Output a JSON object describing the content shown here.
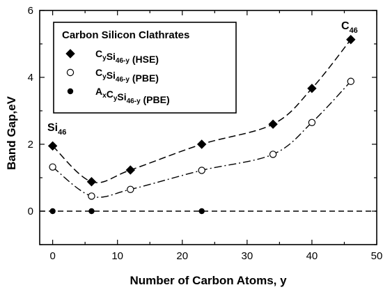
{
  "chart_data": {
    "type": "line",
    "title": "",
    "xlabel": "Number of Carbon Atoms, y",
    "ylabel": "Band Gap,eV",
    "xlim": [
      -2,
      50
    ],
    "ylim": [
      -1,
      6
    ],
    "xticks": [
      0,
      10,
      20,
      30,
      40,
      50
    ],
    "yticks": [
      0,
      2,
      4,
      6
    ],
    "grid": false,
    "legend": {
      "title": "Carbon Silicon Clathrates",
      "placement": "top-left",
      "entries": [
        {
          "base": "C",
          "sub1": "y",
          "mid": "Si",
          "sub2": "46-y",
          "suffix": " (HSE)"
        },
        {
          "base": "C",
          "sub1": "y",
          "mid": "Si",
          "sub2": "46-y",
          "suffix": " (PBE)"
        },
        {
          "pre": "A",
          "presub": "x",
          "base": "C",
          "sub1": "y",
          "mid": "Si",
          "sub2": "46-y",
          "suffix": " (PBE)"
        }
      ]
    },
    "annotations": [
      {
        "base": "Si",
        "sub": "46"
      },
      {
        "base": "C",
        "sub": "46"
      }
    ],
    "series": [
      {
        "name": "CySi46-y (HSE)",
        "marker": "diamond-filled",
        "line": "dashed",
        "x": [
          0,
          6,
          12,
          23,
          34,
          40,
          46
        ],
        "y": [
          1.95,
          0.88,
          1.23,
          2.0,
          2.6,
          3.67,
          5.13
        ]
      },
      {
        "name": "CySi46-y (PBE)",
        "marker": "circle-open",
        "line": "dash-dot",
        "x": [
          0,
          6,
          12,
          23,
          34,
          40,
          46
        ],
        "y": [
          1.32,
          0.45,
          0.65,
          1.22,
          1.7,
          2.65,
          3.88
        ]
      },
      {
        "name": "AxCySi46-y (PBE)",
        "marker": "circle-filled",
        "line": "dashed",
        "x": [
          0,
          6,
          23
        ],
        "y": [
          0,
          0,
          0
        ]
      }
    ]
  }
}
